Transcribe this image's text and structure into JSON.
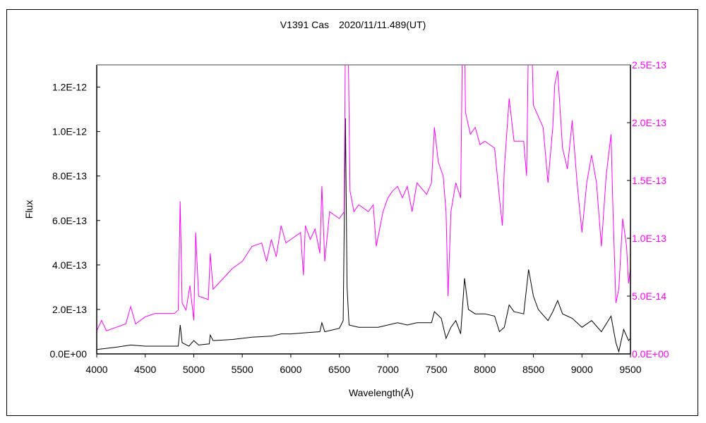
{
  "chart_data": {
    "type": "line",
    "title": "V1391 Cas　2020/11/11.489(UT)",
    "xlabel": "Wavelength(Å)",
    "ylabel": "Flux",
    "xlim": [
      4000,
      9500
    ],
    "ylim_left": [
      0,
      1.3e-12
    ],
    "ylim_right": [
      0,
      2.5e-13
    ],
    "x_ticks": [
      4000,
      4500,
      5000,
      5500,
      6000,
      6500,
      7000,
      7500,
      8000,
      8500,
      9000,
      9500
    ],
    "x_tick_labels": [
      "4000",
      "4500",
      "5000",
      "5500",
      "6000",
      "6500",
      "7000",
      "7500",
      "8000",
      "8500",
      "9000",
      "9500"
    ],
    "y_left_ticks": [
      0,
      2e-13,
      4e-13,
      6e-13,
      8e-13,
      1e-12,
      1.2e-12
    ],
    "y_left_tick_labels": [
      "0.0E+00",
      "2.0E-13",
      "4.0E-13",
      "6.0E-13",
      "8.0E-13",
      "1.0E-12",
      "1.2E-12"
    ],
    "y_right_ticks": [
      0,
      5e-14,
      1e-13,
      1.5e-13,
      2e-13,
      2.5e-13
    ],
    "y_right_tick_labels": [
      "0.0E+00",
      "5.0E-14",
      "1.0E-13",
      "1.5E-13",
      "2.0E-13",
      "2.5E-13"
    ],
    "grid": false,
    "colors": {
      "left_series": "#000000",
      "right_series": "#ff00ff",
      "right_axis_text": "#ff00ff"
    },
    "series": [
      {
        "axis": "left",
        "color": "#000000",
        "x": [
          4000,
          4200,
          4350,
          4500,
          4840,
          4861,
          4880,
          4950,
          5000,
          5050,
          5160,
          5170,
          5200,
          5400,
          5600,
          5800,
          5900,
          6000,
          6150,
          6300,
          6320,
          6350,
          6500,
          6540,
          6563,
          6580,
          6600,
          6700,
          6900,
          7000,
          7100,
          7200,
          7300,
          7450,
          7480,
          7550,
          7600,
          7650,
          7700,
          7750,
          7790,
          7830,
          7900,
          8000,
          8100,
          8150,
          8200,
          8250,
          8300,
          8400,
          8450,
          8500,
          8550,
          8650,
          8700,
          8750,
          8800,
          8900,
          9000,
          9100,
          9200,
          9300,
          9350,
          9380,
          9430,
          9480,
          9500
        ],
        "y": [
          2e-14,
          3e-14,
          4e-14,
          3.5e-14,
          3.5e-14,
          1.3e-13,
          5e-14,
          3.5e-14,
          6e-14,
          4e-14,
          4.5e-14,
          8.5e-14,
          6e-14,
          6.5e-14,
          7.5e-14,
          8e-14,
          9e-14,
          9e-14,
          9.5e-14,
          1e-13,
          1.4e-13,
          1e-13,
          1.15e-13,
          1.5e-13,
          1.06e-12,
          3e-13,
          1.3e-13,
          1.2e-13,
          1.2e-13,
          1.3e-13,
          1.4e-13,
          1.3e-13,
          1.4e-13,
          1.4e-13,
          1.9e-13,
          1.6e-13,
          7e-14,
          1.2e-13,
          1.5e-13,
          9e-14,
          3.4e-13,
          2e-13,
          1.8e-13,
          1.8e-13,
          1.7e-13,
          1e-13,
          1.2e-13,
          2.2e-13,
          1.9e-13,
          1.8e-13,
          3.8e-13,
          2.6e-13,
          2e-13,
          1.5e-13,
          1.9e-13,
          2.4e-13,
          1.8e-13,
          1.6e-13,
          1.2e-13,
          1.5e-13,
          1e-13,
          1.7e-13,
          5e-14,
          1e-14,
          1.1e-13,
          6e-14,
          7e-14
        ]
      },
      {
        "axis": "right",
        "color": "#ff00ff",
        "x": [
          4000,
          4050,
          4100,
          4200,
          4300,
          4350,
          4400,
          4500,
          4600,
          4800,
          4840,
          4860,
          4880,
          4920,
          4960,
          5000,
          5020,
          5050,
          5150,
          5170,
          5200,
          5300,
          5400,
          5500,
          5600,
          5700,
          5750,
          5800,
          5850,
          5900,
          5950,
          6000,
          6100,
          6130,
          6150,
          6200,
          6250,
          6300,
          6320,
          6350,
          6400,
          6500,
          6550,
          6563,
          6590,
          6610,
          6650,
          6700,
          6800,
          6850,
          6880,
          6950,
          7000,
          7050,
          7100,
          7150,
          7200,
          7250,
          7300,
          7400,
          7450,
          7480,
          7520,
          7570,
          7600,
          7620,
          7650,
          7700,
          7750,
          7770,
          7790,
          7800,
          7850,
          7900,
          7950,
          8000,
          8100,
          8150,
          8180,
          8200,
          8250,
          8300,
          8400,
          8430,
          8450,
          8480,
          8500,
          8600,
          8650,
          8700,
          8720,
          8750,
          8800,
          8850,
          8900,
          8950,
          9000,
          9050,
          9100,
          9150,
          9200,
          9250,
          9300,
          9320,
          9350,
          9380,
          9420,
          9440,
          9460,
          9480,
          9500
        ],
        "y": [
          2e-14,
          2.9e-14,
          2e-14,
          2.3e-14,
          2.6e-14,
          4.1e-14,
          2.6e-14,
          3.2e-14,
          3.5e-14,
          3.5e-14,
          3.8e-14,
          1.32e-13,
          4.4e-14,
          3.8e-14,
          5.9e-14,
          2.9e-14,
          1.05e-13,
          5e-14,
          4.7e-14,
          8.7e-14,
          5.6e-14,
          6.5e-14,
          7.4e-14,
          8e-14,
          9.3e-14,
          9.6e-14,
          8e-14,
          9.9e-14,
          8.4e-14,
          1.11e-13,
          9.6e-14,
          9.9e-14,
          1.05e-13,
          6.8e-14,
          1.11e-13,
          9.9e-14,
          1.08e-13,
          8.7e-14,
          1.45e-13,
          8e-14,
          1.23e-13,
          1.17e-13,
          1.23e-13,
          2.8e-13,
          2.8e-13,
          1.41e-13,
          1.23e-13,
          1.29e-13,
          1.23e-13,
          1.29e-13,
          9.3e-14,
          1.23e-13,
          1.35e-13,
          1.41e-13,
          1.45e-13,
          1.35e-13,
          1.45e-13,
          1.23e-13,
          1.48e-13,
          1.38e-13,
          1.48e-13,
          1.96e-13,
          1.66e-13,
          1.54e-13,
          1.23e-13,
          5e-14,
          1.23e-13,
          1.48e-13,
          1.35e-13,
          2.8e-13,
          2.8e-13,
          2.09e-13,
          1.9e-13,
          1.96e-13,
          1.81e-13,
          1.84e-13,
          1.78e-13,
          1.35e-13,
          1.11e-13,
          1.6e-13,
          2.21e-13,
          1.84e-13,
          1.84e-13,
          1.54e-13,
          2.8e-13,
          2.8e-13,
          2.15e-13,
          1.96e-13,
          1.48e-13,
          1.96e-13,
          2.33e-13,
          2.45e-13,
          1.78e-13,
          1.6e-13,
          2.02e-13,
          1.48e-13,
          1.05e-13,
          1.48e-13,
          1.72e-13,
          1.48e-13,
          9.3e-14,
          1.54e-13,
          1.9e-13,
          1.23e-13,
          4.4e-14,
          5.6e-14,
          1.17e-13,
          1.05e-13,
          9.3e-14,
          6.1e-14,
          7.4e-14
        ]
      }
    ]
  }
}
